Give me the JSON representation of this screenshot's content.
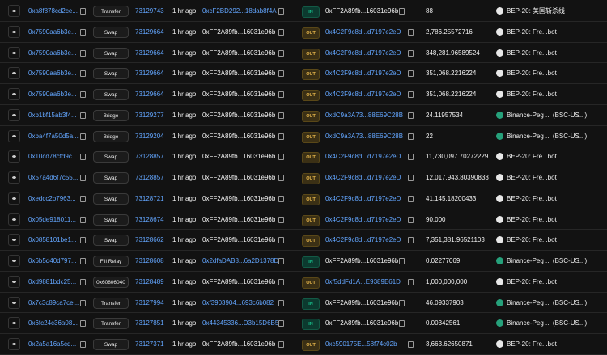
{
  "table": {
    "rows": [
      {
        "hash": "0xa8f878cd2ce...",
        "method": "Transfer",
        "block": "73129743",
        "age": "1 hr ago",
        "from": "0xcF2BD292...18dab8f4A",
        "dir": "IN",
        "to": "0xFF2A89fb...16031e96b",
        "amount": "88",
        "token": "BEP-20: 美国斩杀线",
        "icon_color": "#e8e8e8"
      },
      {
        "hash": "0x7590aa6b3e...",
        "method": "Swap",
        "block": "73129664",
        "age": "1 hr ago",
        "from": "0xFF2A89fb...16031e96b",
        "dir": "OUT",
        "to": "0x4C2F9c8d...d7197e2eD",
        "amount": "2,786.25572716",
        "token": "BEP-20: Fre...bot",
        "icon_color": "#e8e8e8"
      },
      {
        "hash": "0x7590aa6b3e...",
        "method": "Swap",
        "block": "73129664",
        "age": "1 hr ago",
        "from": "0xFF2A89fb...16031e96b",
        "dir": "OUT",
        "to": "0x4C2F9c8d...d7197e2eD",
        "amount": "348,281.96589524",
        "token": "BEP-20: Fre...bot",
        "icon_color": "#e8e8e8"
      },
      {
        "hash": "0x7590aa6b3e...",
        "method": "Swap",
        "block": "73129664",
        "age": "1 hr ago",
        "from": "0xFF2A89fb...16031e96b",
        "dir": "OUT",
        "to": "0x4C2F9c8d...d7197e2eD",
        "amount": "351,068.2216224",
        "token": "BEP-20: Fre...bot",
        "icon_color": "#e8e8e8"
      },
      {
        "hash": "0x7590aa6b3e...",
        "method": "Swap",
        "block": "73129664",
        "age": "1 hr ago",
        "from": "0xFF2A89fb...16031e96b",
        "dir": "OUT",
        "to": "0x4C2F9c8d...d7197e2eD",
        "amount": "351,068.2216224",
        "token": "BEP-20: Fre...bot",
        "icon_color": "#e8e8e8"
      },
      {
        "hash": "0xb1bf15ab3f4...",
        "method": "Bridge",
        "block": "73129277",
        "age": "1 hr ago",
        "from": "0xFF2A89fb...16031e96b",
        "dir": "OUT",
        "to": "0xdC9a3A73...88E69C28B",
        "amount": "24.11957534",
        "token": "Binance-Peg ... (BSC-US...)",
        "icon_color": "#26a17b"
      },
      {
        "hash": "0xba4f7a50d5a...",
        "method": "Bridge",
        "block": "73129204",
        "age": "1 hr ago",
        "from": "0xFF2A89fb...16031e96b",
        "dir": "OUT",
        "to": "0xdC9a3A73...88E69C28B",
        "amount": "22",
        "token": "Binance-Peg ... (BSC-US...)",
        "icon_color": "#26a17b"
      },
      {
        "hash": "0x10cd78cfd9c...",
        "method": "Swap",
        "block": "73128857",
        "age": "1 hr ago",
        "from": "0xFF2A89fb...16031e96b",
        "dir": "OUT",
        "to": "0x4C2F9c8d...d7197e2eD",
        "amount": "11,730,097.70272229",
        "token": "BEP-20: Fre...bot",
        "icon_color": "#e8e8e8"
      },
      {
        "hash": "0x57a4d6f7c55...",
        "method": "Swap",
        "block": "73128857",
        "age": "1 hr ago",
        "from": "0xFF2A89fb...16031e96b",
        "dir": "OUT",
        "to": "0x4C2F9c8d...d7197e2eD",
        "amount": "12,017,943.80390833",
        "token": "BEP-20: Fre...bot",
        "icon_color": "#e8e8e8"
      },
      {
        "hash": "0xedcc2b7963...",
        "method": "Swap",
        "block": "73128721",
        "age": "1 hr ago",
        "from": "0xFF2A89fb...16031e96b",
        "dir": "OUT",
        "to": "0x4C2F9c8d...d7197e2eD",
        "amount": "41,145.18200433",
        "token": "BEP-20: Fre...bot",
        "icon_color": "#e8e8e8"
      },
      {
        "hash": "0x05de918011...",
        "method": "Swap",
        "block": "73128674",
        "age": "1 hr ago",
        "from": "0xFF2A89fb...16031e96b",
        "dir": "OUT",
        "to": "0x4C2F9c8d...d7197e2eD",
        "amount": "90,000",
        "token": "BEP-20: Fre...bot",
        "icon_color": "#e8e8e8"
      },
      {
        "hash": "0x0858101be1...",
        "method": "Swap",
        "block": "73128662",
        "age": "1 hr ago",
        "from": "0xFF2A89fb...16031e96b",
        "dir": "OUT",
        "to": "0x4C2F9c8d...d7197e2eD",
        "amount": "7,351,381.96521103",
        "token": "BEP-20: Fre...bot",
        "icon_color": "#e8e8e8"
      },
      {
        "hash": "0x6b5d40d797...",
        "method": "Fill Relay",
        "block": "73128608",
        "age": "1 hr ago",
        "from": "0x2dfaDAB8...6a2D1378D",
        "dir": "IN",
        "to": "0xFF2A89fb...16031e96b",
        "amount": "0.02277069",
        "token": "Binance-Peg ... (BSC-US...)",
        "icon_color": "#26a17b"
      },
      {
        "hash": "0xd9881bdc25...",
        "method": "0x60806040",
        "block": "73128489",
        "age": "1 hr ago",
        "from": "0xFF2A89fb...16031e96b",
        "dir": "OUT",
        "to": "0xf5ddFd1A...E9389E61D",
        "amount": "1,000,000,000",
        "token": "BEP-20: Fre...bot",
        "icon_color": "#e8e8e8"
      },
      {
        "hash": "0x7c3c89ca7ce...",
        "method": "Transfer",
        "block": "73127994",
        "age": "1 hr ago",
        "from": "0xf3903904...693c6b082",
        "dir": "IN",
        "to": "0xFF2A89fb...16031e96b",
        "amount": "46.09337903",
        "token": "Binance-Peg ... (BSC-US...)",
        "icon_color": "#26a17b"
      },
      {
        "hash": "0x6fc24c36a08...",
        "method": "Transfer",
        "block": "73127851",
        "age": "1 hr ago",
        "from": "0x44345336...D3b15D6B5",
        "dir": "IN",
        "to": "0xFF2A89fb...16031e96b",
        "amount": "0.00342561",
        "token": "Binance-Peg ... (BSC-US...)",
        "icon_color": "#26a17b"
      },
      {
        "hash": "0x2a5a16a5cd...",
        "method": "Swap",
        "block": "73127371",
        "age": "1 hr ago",
        "from": "0xFF2A89fb...16031e96b",
        "dir": "OUT",
        "to": "0xc590175E...58f74c02b",
        "amount": "3,663.62650871",
        "token": "BEP-20: Fre...bot",
        "icon_color": "#e8e8e8"
      }
    ]
  }
}
